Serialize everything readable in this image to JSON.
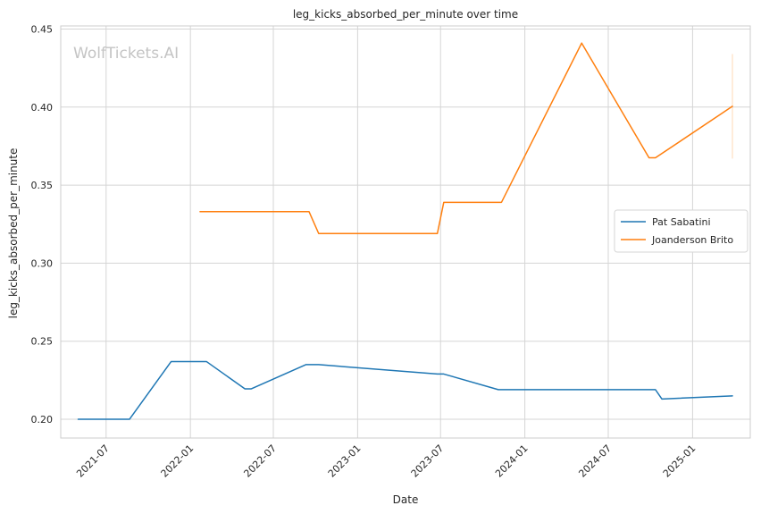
{
  "chart_data": {
    "type": "line",
    "title": "leg_kicks_absorbed_per_minute over time",
    "xlabel": "Date",
    "ylabel": "leg_kicks_absorbed_per_minute",
    "watermark": "WolfTickets.AI",
    "x_ticks": [
      "2021-07",
      "2022-01",
      "2022-07",
      "2023-01",
      "2023-07",
      "2024-01",
      "2024-07",
      "2025-01"
    ],
    "y_ticks": [
      "0.20",
      "0.25",
      "0.30",
      "0.35",
      "0.40",
      "0.45"
    ],
    "ylim": [
      0.188,
      0.452
    ],
    "xlim": [
      "2021-03-24",
      "2025-05-07"
    ],
    "grid": true,
    "legend_position": "center-right",
    "series": [
      {
        "name": "Pat Sabatini",
        "color": "#1f77b4",
        "x": [
          "2021-05-01",
          "2021-08-21",
          "2021-11-20",
          "2022-02-05",
          "2022-04-30",
          "2022-05-14",
          "2022-09-10",
          "2022-10-08",
          "2023-06-24",
          "2023-07-08",
          "2023-11-04",
          "2024-10-12",
          "2024-10-26",
          "2025-03-29"
        ],
        "y": [
          0.2,
          0.2,
          0.237,
          0.237,
          0.2195,
          0.2195,
          0.235,
          0.235,
          0.229,
          0.229,
          0.219,
          0.219,
          0.213,
          0.215
        ]
      },
      {
        "name": "Joanderson Brito",
        "color": "#ff7f0e",
        "x": [
          "2022-01-22",
          "2022-09-17",
          "2022-10-08",
          "2023-06-24",
          "2023-07-08",
          "2023-11-04",
          "2023-11-11",
          "2024-05-04",
          "2024-09-28",
          "2024-10-12",
          "2025-03-29"
        ],
        "y": [
          0.333,
          0.333,
          0.319,
          0.319,
          0.339,
          0.339,
          0.339,
          0.441,
          0.3675,
          0.3675,
          0.4005
        ]
      }
    ],
    "error_bar": {
      "series": "Joanderson Brito",
      "x": "2025-03-29",
      "low": 0.367,
      "high": 0.434
    }
  }
}
